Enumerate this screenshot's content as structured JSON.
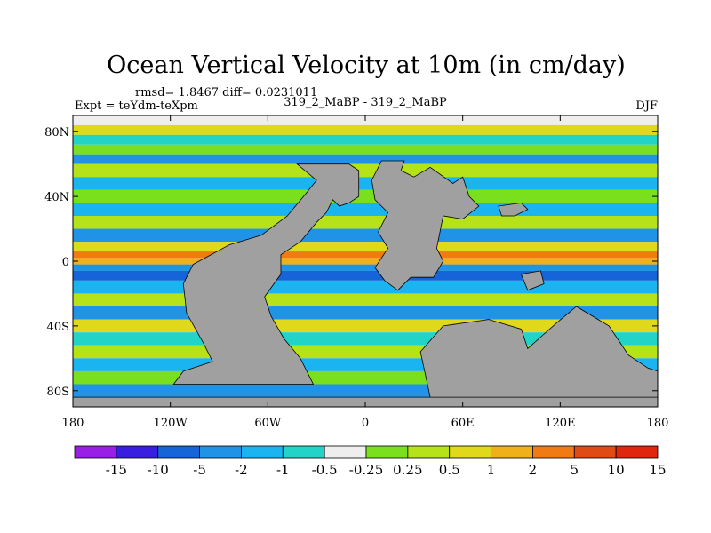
{
  "chart_data": {
    "type": "heatmap",
    "title": "Ocean Vertical Velocity at 10m (in cm/day)",
    "stats_text": "rmsd= 1.8467 diff= 0.0231011",
    "left_label": "Expt = teYdm-teXpm",
    "center_label": "319_2_MaBP - 319_2_MaBP",
    "season": "DJF",
    "x_range": [
      -180,
      180
    ],
    "y_range": [
      -90,
      90
    ],
    "x_ticks": [
      {
        "value": -180,
        "label": "180"
      },
      {
        "value": -120,
        "label": "120W"
      },
      {
        "value": -60,
        "label": "60W"
      },
      {
        "value": 0,
        "label": "0"
      },
      {
        "value": 60,
        "label": "60E"
      },
      {
        "value": 120,
        "label": "120E"
      },
      {
        "value": 180,
        "label": "180"
      }
    ],
    "y_ticks": [
      {
        "value": 80,
        "label": "80N"
      },
      {
        "value": 40,
        "label": "40N"
      },
      {
        "value": 0,
        "label": "0"
      },
      {
        "value": -40,
        "label": "40S"
      },
      {
        "value": -80,
        "label": "80S"
      }
    ],
    "colorbar": {
      "colors": [
        "#9a1fe6",
        "#3a1ee0",
        "#1565d8",
        "#2193e6",
        "#1ab4f0",
        "#22d4c8",
        "#eeeeee",
        "#7ae01e",
        "#b6e21a",
        "#e0d81a",
        "#f0b01a",
        "#f07a14",
        "#e04a14",
        "#e0260e"
      ],
      "labels": [
        "-15",
        "-10",
        "-5",
        "-2",
        "-1",
        "-0.5",
        "-0.25",
        "0.25",
        "0.5",
        "1",
        "2",
        "5",
        "10",
        "15"
      ]
    },
    "land_color": "#a0a0a0"
  }
}
